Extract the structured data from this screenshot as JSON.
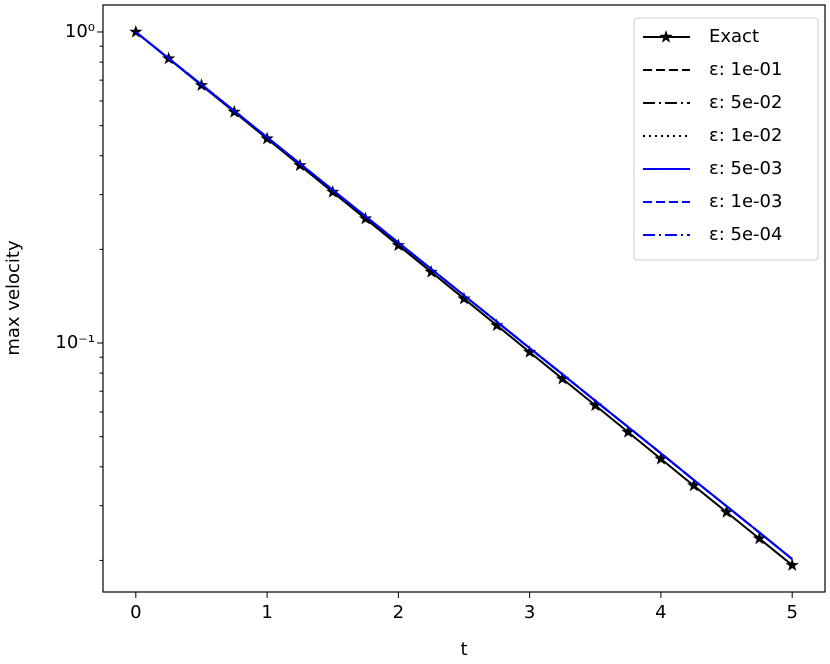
{
  "chart_data": {
    "type": "line",
    "xlabel": "t",
    "ylabel": "max velocity",
    "x": [
      0,
      0.25,
      0.5,
      0.75,
      1,
      1.25,
      1.5,
      1.75,
      2,
      2.25,
      2.5,
      2.75,
      3,
      3.25,
      3.5,
      3.75,
      4,
      4.25,
      4.5,
      4.75,
      5
    ],
    "series": [
      {
        "name": "Exact",
        "color": "#000000",
        "dash": "solid",
        "marker": "star",
        "values": [
          1,
          0.8208,
          0.6737,
          0.553,
          0.4538,
          0.3725,
          0.3057,
          0.251,
          0.206,
          0.1691,
          0.1388,
          0.1139,
          0.0935,
          0.0767,
          0.063,
          0.0517,
          0.0424,
          0.0348,
          0.0286,
          0.0235,
          0.0193
        ]
      },
      {
        "name": "ε: 1e-01",
        "color": "#000000",
        "dash": "dashed",
        "values": [
          1,
          0.8226,
          0.6771,
          0.5571,
          0.4584,
          0.3772,
          0.3104,
          0.2554,
          0.2101,
          0.1729,
          0.1423,
          0.1171,
          0.0963,
          0.0793,
          0.0652,
          0.0537,
          0.0442,
          0.0363,
          0.0299,
          0.0246,
          0.0202
        ]
      },
      {
        "name": "ε: 5e-02",
        "color": "#000000",
        "dash": "dashdot",
        "values": [
          1,
          0.8226,
          0.6771,
          0.5571,
          0.4584,
          0.3772,
          0.3104,
          0.2554,
          0.2101,
          0.1729,
          0.1423,
          0.1171,
          0.0963,
          0.0793,
          0.0652,
          0.0537,
          0.0442,
          0.0363,
          0.0299,
          0.0246,
          0.0202
        ]
      },
      {
        "name": "ε: 1e-02",
        "color": "#000000",
        "dash": "dotted",
        "values": [
          1,
          0.8226,
          0.6771,
          0.5571,
          0.4584,
          0.3772,
          0.3104,
          0.2554,
          0.2101,
          0.1729,
          0.1423,
          0.1171,
          0.0963,
          0.0793,
          0.0652,
          0.0537,
          0.0442,
          0.0363,
          0.0299,
          0.0246,
          0.0202
        ]
      },
      {
        "name": "ε: 5e-03",
        "color": "#0000ff",
        "dash": "solid",
        "values": [
          1,
          0.8226,
          0.6771,
          0.5571,
          0.4584,
          0.3772,
          0.3104,
          0.2554,
          0.2101,
          0.1729,
          0.1423,
          0.1171,
          0.0963,
          0.0793,
          0.0652,
          0.0537,
          0.0442,
          0.0363,
          0.0299,
          0.0246,
          0.0202
        ]
      },
      {
        "name": "ε: 1e-03",
        "color": "#0000ff",
        "dash": "dashed",
        "values": [
          1,
          0.8226,
          0.6771,
          0.5571,
          0.4584,
          0.3772,
          0.3104,
          0.2554,
          0.2101,
          0.1729,
          0.1423,
          0.1171,
          0.0963,
          0.0793,
          0.0652,
          0.0537,
          0.0442,
          0.0363,
          0.0299,
          0.0246,
          0.0202
        ]
      },
      {
        "name": "ε: 5e-04",
        "color": "#0000ff",
        "dash": "dashdot",
        "values": [
          1,
          0.8226,
          0.6771,
          0.5571,
          0.4584,
          0.3772,
          0.3104,
          0.2554,
          0.2101,
          0.1729,
          0.1423,
          0.1171,
          0.0963,
          0.0793,
          0.0652,
          0.0537,
          0.0442,
          0.0363,
          0.0299,
          0.0246,
          0.0202
        ]
      }
    ],
    "xlim": [
      -0.25,
      5.25
    ],
    "xticks": [
      0,
      1,
      2,
      3,
      4,
      5
    ],
    "ylim": [
      0.01583,
      1.221
    ],
    "ylog": true,
    "yticks": [
      {
        "value": 1,
        "label": "10⁰"
      },
      {
        "value": 0.1,
        "label": "10⁻¹"
      }
    ],
    "yminorticks": [
      0.02,
      0.03,
      0.04,
      0.05,
      0.06,
      0.07,
      0.08,
      0.09,
      0.2,
      0.3,
      0.4,
      0.5,
      0.6,
      0.7,
      0.8,
      0.9
    ],
    "legend": "upper right",
    "grid": false
  }
}
